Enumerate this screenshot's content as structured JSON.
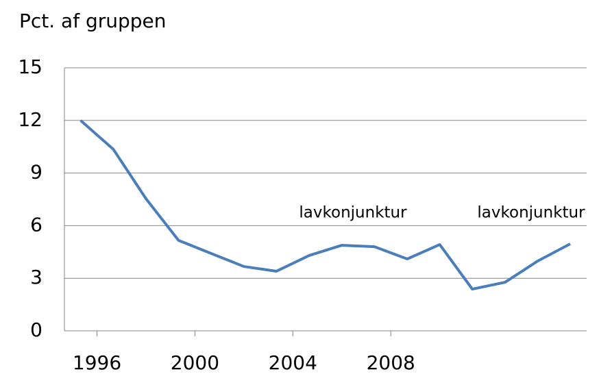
{
  "chart_data": {
    "type": "line",
    "title": "Pct. af gruppen",
    "annotations": [
      "lavkonjunktur",
      "lavkonjunktur"
    ],
    "x": [
      1995.33,
      1996.67,
      1998,
      1999.33,
      2000.67,
      2002,
      2003.33,
      2004.67,
      2006,
      2007.33,
      2008.67,
      2010,
      2011.33,
      2012.67,
      2014,
      2015.33
    ],
    "series": [
      {
        "name": "Pct. af gruppen",
        "color": "#4a7ebb",
        "values": [
          12.0,
          10.35,
          7.54,
          5.16,
          4.41,
          3.67,
          3.4,
          4.3,
          4.88,
          4.8,
          4.1,
          4.92,
          2.38,
          2.77,
          3.98,
          4.96
        ]
      }
    ],
    "xlim": [
      1994.67,
      2016.0
    ],
    "xticks": [
      1996,
      2000,
      2004,
      2008
    ],
    "ylim": [
      0,
      15
    ],
    "yticks": [
      0,
      3,
      6,
      9,
      12,
      15
    ],
    "grid": true
  }
}
